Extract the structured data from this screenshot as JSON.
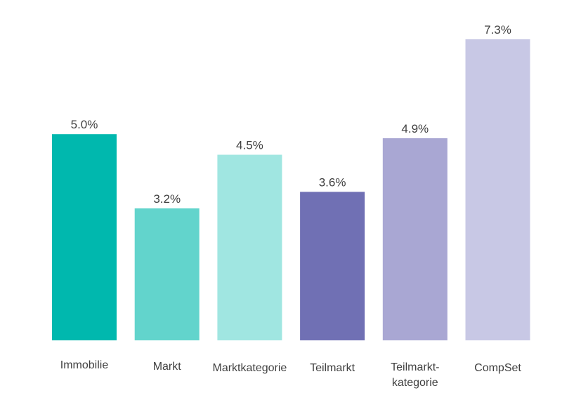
{
  "chart_data": {
    "type": "bar",
    "title": "",
    "xlabel": "",
    "ylabel": "",
    "ylim": [
      0,
      7.3
    ],
    "grid": false,
    "legend": "none",
    "categories": [
      {
        "lines": [
          "Immobilie"
        ]
      },
      {
        "lines": [
          "Markt"
        ]
      },
      {
        "lines": [
          "Marktkategorie"
        ]
      },
      {
        "lines": [
          "Teilmarkt"
        ]
      },
      {
        "lines": [
          "Teilmarkt-",
          "kategorie"
        ]
      },
      {
        "lines": [
          "CompSet"
        ]
      }
    ],
    "values": [
      5.0,
      3.2,
      4.5,
      3.6,
      4.9,
      7.3
    ],
    "value_labels": [
      "5.0%",
      "3.2%",
      "4.5%",
      "3.6%",
      "4.9%",
      "7.3%"
    ],
    "colors": [
      "#00b8ae",
      "#62d4cc",
      "#a0e6e1",
      "#7070b4",
      "#a9a7d3",
      "#c8c8e5"
    ]
  }
}
